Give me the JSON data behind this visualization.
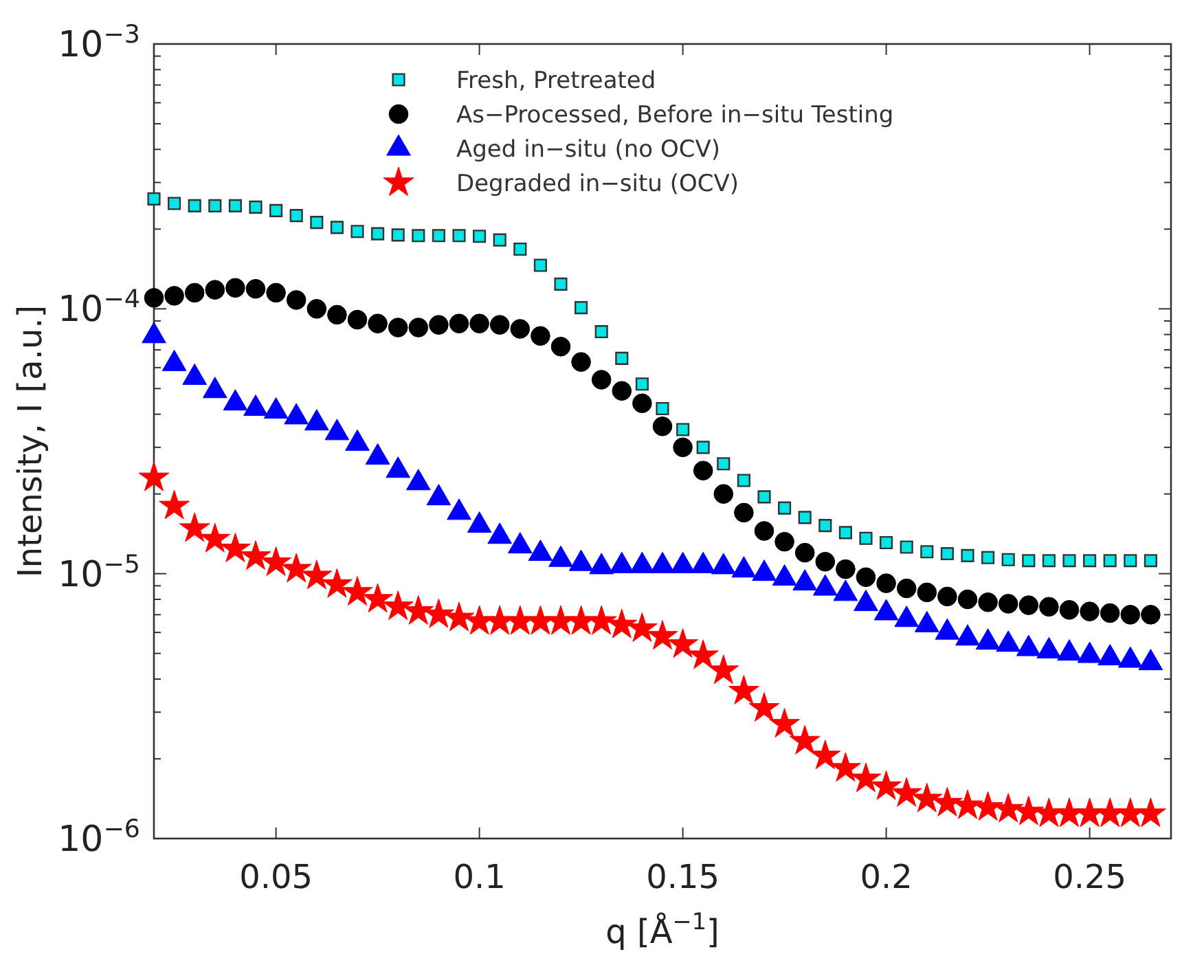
{
  "chart_data": {
    "type": "scatter",
    "xlabel": "q [Å$^{−1}$]",
    "ylabel": "Intensity, I [a.u.]",
    "log": "y",
    "legend": "top",
    "grid": false,
    "xlim": [
      0.02,
      0.27
    ],
    "xticks": [
      0.05,
      0.1,
      0.15,
      0.2,
      0.25
    ],
    "ylim": [
      1e-06,
      0.001
    ],
    "yticks": [
      {
        "value": 1e-06,
        "label": "10$^{−6}$"
      },
      {
        "value": 2e-06,
        "label": null
      },
      {
        "value": 3e-06,
        "label": null
      },
      {
        "value": 4e-06,
        "label": null
      },
      {
        "value": 5e-06,
        "label": null
      },
      {
        "value": 6e-06,
        "label": null
      },
      {
        "value": 7e-06,
        "label": null
      },
      {
        "value": 8e-06,
        "label": null
      },
      {
        "value": 9e-06,
        "label": null
      },
      {
        "value": 1e-05,
        "label": "10$^{−5}$"
      },
      {
        "value": 2e-05,
        "label": null
      },
      {
        "value": 3e-05,
        "label": null
      },
      {
        "value": 4e-05,
        "label": null
      },
      {
        "value": 5e-05,
        "label": null
      },
      {
        "value": 6e-05,
        "label": null
      },
      {
        "value": 7e-05,
        "label": null
      },
      {
        "value": 8e-05,
        "label": null
      },
      {
        "value": 9e-05,
        "label": null
      },
      {
        "value": 0.0001,
        "label": "10$^{−4}$"
      },
      {
        "value": 0.0002,
        "label": null
      },
      {
        "value": 0.0003,
        "label": null
      },
      {
        "value": 0.0004,
        "label": null
      },
      {
        "value": 0.0005,
        "label": null
      },
      {
        "value": 0.0006,
        "label": null
      },
      {
        "value": 0.0007,
        "label": null
      },
      {
        "value": 0.0008,
        "label": null
      },
      {
        "value": 0.0009,
        "label": null
      },
      {
        "value": 0.001,
        "label": "10$^{−3}$"
      }
    ],
    "x": [
      0.02,
      0.025,
      0.03,
      0.035,
      0.04,
      0.045,
      0.05,
      0.055,
      0.06,
      0.065,
      0.07,
      0.075,
      0.08,
      0.085,
      0.09,
      0.095,
      0.1,
      0.105,
      0.11,
      0.115,
      0.12,
      0.125,
      0.13,
      0.135,
      0.14,
      0.145,
      0.15,
      0.155,
      0.16,
      0.165,
      0.17,
      0.175,
      0.18,
      0.185,
      0.19,
      0.195,
      0.2,
      0.205,
      0.21,
      0.215,
      0.22,
      0.225,
      0.23,
      0.235,
      0.24,
      0.245,
      0.25,
      0.255,
      0.26,
      0.265
    ],
    "series": [
      {
        "name": "Fresh, Pretreated",
        "color": "#00e5e5",
        "marker": "square",
        "values": [
          0.00026,
          0.00025,
          0.000245,
          0.000245,
          0.000245,
          0.000242,
          0.000235,
          0.000225,
          0.000212,
          0.000203,
          0.000196,
          0.000192,
          0.00019,
          0.000189,
          0.000189,
          0.000189,
          0.000188,
          0.000182,
          0.000168,
          0.000146,
          0.000124,
          0.000101,
          8.2e-05,
          6.5e-05,
          5.2e-05,
          4.2e-05,
          3.5e-05,
          3e-05,
          2.6e-05,
          2.25e-05,
          1.95e-05,
          1.77e-05,
          1.63e-05,
          1.52e-05,
          1.43e-05,
          1.36e-05,
          1.31e-05,
          1.26e-05,
          1.21e-05,
          1.19e-05,
          1.17e-05,
          1.15e-05,
          1.13e-05,
          1.12e-05,
          1.12e-05,
          1.12e-05,
          1.12e-05,
          1.12e-05,
          1.12e-05,
          1.12e-05
        ]
      },
      {
        "name": "As−Processed, Before in−situ Testing",
        "color": "#000000",
        "marker": "circle",
        "values": [
          0.00011,
          0.000112,
          0.000115,
          0.000118,
          0.00012,
          0.000119,
          0.000115,
          0.000108,
          0.0001,
          9.5e-05,
          9.1e-05,
          8.8e-05,
          8.5e-05,
          8.5e-05,
          8.7e-05,
          8.8e-05,
          8.8e-05,
          8.7e-05,
          8.4e-05,
          7.9e-05,
          7.2e-05,
          6.3e-05,
          5.4e-05,
          4.9e-05,
          4.4e-05,
          3.6e-05,
          3e-05,
          2.45e-05,
          2e-05,
          1.7e-05,
          1.45e-05,
          1.32e-05,
          1.2e-05,
          1.11e-05,
          1.04e-05,
          9.7e-06,
          9.2e-06,
          8.8e-06,
          8.5e-06,
          8.2e-06,
          8e-06,
          7.8e-06,
          7.7e-06,
          7.6e-06,
          7.5e-06,
          7.3e-06,
          7.2e-06,
          7.1e-06,
          7e-06,
          7e-06
        ]
      },
      {
        "name": "Aged in−situ (no OCV)",
        "color": "#0000ff",
        "marker": "triangle",
        "values": [
          7.9e-05,
          6.2e-05,
          5.5e-05,
          4.9e-05,
          4.4e-05,
          4.2e-05,
          4.1e-05,
          3.9e-05,
          3.7e-05,
          3.4e-05,
          3.1e-05,
          2.75e-05,
          2.45e-05,
          2.2e-05,
          1.93e-05,
          1.7e-05,
          1.52e-05,
          1.38e-05,
          1.27e-05,
          1.19e-05,
          1.13e-05,
          1.09e-05,
          1.06e-05,
          1.07e-05,
          1.07e-05,
          1.07e-05,
          1.07e-05,
          1.07e-05,
          1.06e-05,
          1.03e-05,
          1e-05,
          9.6e-06,
          9.2e-06,
          8.8e-06,
          8.4e-06,
          7.7e-06,
          7.1e-06,
          6.7e-06,
          6.4e-06,
          6e-06,
          5.7e-06,
          5.5e-06,
          5.4e-06,
          5.2e-06,
          5.1e-06,
          5e-06,
          4.9e-06,
          4.8e-06,
          4.7e-06,
          4.6e-06
        ]
      },
      {
        "name": "Degraded in−situ (OCV)",
        "color": "#ff0000",
        "marker": "star",
        "values": [
          2.3e-05,
          1.8e-05,
          1.48e-05,
          1.35e-05,
          1.24e-05,
          1.16e-05,
          1.1e-05,
          1.04e-05,
          9.8e-06,
          9.1e-06,
          8.5e-06,
          8e-06,
          7.5e-06,
          7.2e-06,
          7e-06,
          6.8e-06,
          6.6e-06,
          6.6e-06,
          6.6e-06,
          6.6e-06,
          6.6e-06,
          6.6e-06,
          6.6e-06,
          6.4e-06,
          6.2e-06,
          5.8e-06,
          5.4e-06,
          4.9e-06,
          4.3e-06,
          3.6e-06,
          3.1e-06,
          2.7e-06,
          2.33e-06,
          2.05e-06,
          1.84e-06,
          1.68e-06,
          1.57e-06,
          1.48e-06,
          1.41e-06,
          1.36e-06,
          1.33e-06,
          1.31e-06,
          1.29e-06,
          1.26e-06,
          1.24e-06,
          1.24e-06,
          1.24e-06,
          1.24e-06,
          1.24e-06,
          1.24e-06
        ]
      }
    ]
  }
}
